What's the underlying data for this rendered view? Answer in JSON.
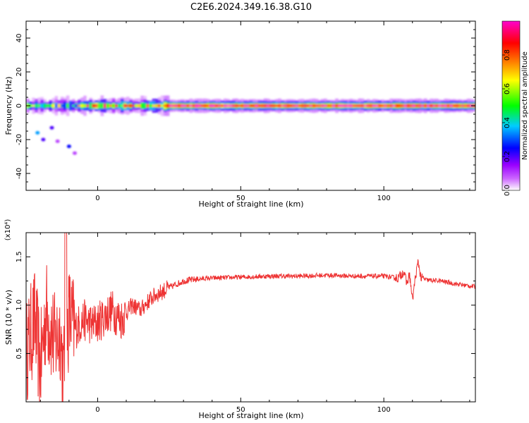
{
  "title": "C2E6.2024.349.16.38.G10",
  "chart_data": [
    {
      "type": "heatmap",
      "xlabel": "Height of straight line (km)",
      "ylabel": "Frequency (Hz)",
      "xlim": [
        -25,
        132
      ],
      "ylim": [
        -50,
        50
      ],
      "xticks": [
        "0",
        "50",
        "100"
      ],
      "yticks": [
        "-40",
        "-20",
        "0",
        "20",
        "40"
      ],
      "colorbar": {
        "label": "Normalized spectral amplitude",
        "range": [
          0,
          1
        ],
        "ticks": [
          "0.0",
          "0.2",
          "0.4",
          "0.6",
          "0.8"
        ],
        "colors": [
          "#ffffff",
          "#9900ff",
          "#0000ff",
          "#00ccff",
          "#00ff00",
          "#ffff00",
          "#ff8800",
          "#ff0000",
          "#ff00cc"
        ]
      },
      "band": {
        "center_hz": 0,
        "core_segments": [
          {
            "x": [
              -25,
              -8
            ],
            "amplitude": 0.45
          },
          {
            "x": [
              -8,
              22
            ],
            "amplitude": 0.7
          },
          {
            "x": [
              22,
              132
            ],
            "amplitude": 0.95
          }
        ],
        "scatter": [
          {
            "x": -21,
            "y": -16,
            "amplitude": 0.35
          },
          {
            "x": -19,
            "y": -20,
            "amplitude": 0.2
          },
          {
            "x": -16,
            "y": -13,
            "amplitude": 0.2
          },
          {
            "x": -10,
            "y": -24,
            "amplitude": 0.25
          },
          {
            "x": -8,
            "y": -28,
            "amplitude": 0.1
          },
          {
            "x": -14,
            "y": -21,
            "amplitude": 0.1
          }
        ]
      }
    },
    {
      "type": "line",
      "xlabel": "Height of straight line (km)",
      "ylabel": "SNR (10 * v/v)",
      "multiplier": "(x10⁴)",
      "xlim": [
        -25,
        132
      ],
      "ylim": [
        0,
        1.75
      ],
      "xticks": [
        "0",
        "50",
        "100"
      ],
      "yticks": [
        "0.5",
        "1.0",
        "1.5"
      ],
      "color": "#ee3333",
      "series": [
        {
          "x": [
            -25,
            -22,
            -20,
            -18,
            -15,
            -13,
            -12,
            -10,
            -8,
            -5,
            -2,
            0,
            3,
            5,
            8,
            10,
            12,
            15,
            18,
            20,
            25,
            30,
            35,
            40,
            50,
            60,
            70,
            80,
            90,
            100,
            105,
            107,
            108,
            109,
            110,
            111,
            112,
            113,
            115,
            120,
            125,
            132
          ],
          "values": [
            0.5,
            0.85,
            0.35,
            0.95,
            0.6,
            0.75,
            0.25,
            0.9,
            0.75,
            0.85,
            0.8,
            0.82,
            0.9,
            0.95,
            0.85,
            0.92,
            1.0,
            0.95,
            1.05,
            1.1,
            1.18,
            1.25,
            1.27,
            1.28,
            1.29,
            1.3,
            1.3,
            1.31,
            1.3,
            1.3,
            1.28,
            1.35,
            1.22,
            1.32,
            1.05,
            1.28,
            1.45,
            1.28,
            1.26,
            1.25,
            1.22,
            1.19
          ]
        }
      ]
    }
  ]
}
